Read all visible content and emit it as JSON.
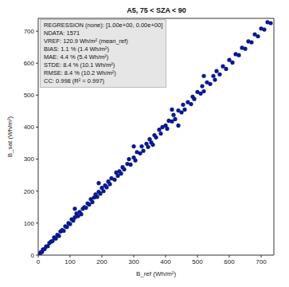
{
  "chart_data": {
    "type": "scatter",
    "title": "A5, 75 < SZA < 90",
    "x_label": "B_ref (Wh/m²)",
    "y_label": "B_sat (Wh/m²)",
    "annotations": [
      "REGRESSION (none): [1.00e+00, 0.00e+00]",
      "NDATA: 1571",
      "VREF: 120.9 Wh/m² (mean_ref)",
      "BIAS: 1.1 % (1.4 Wh/m²)",
      "MAE: 4.4 % (5.4 Wh/m²)",
      "STDE: 8.4 % (10.1 Wh/m²)",
      "RMSE: 8.4 % (10.2 Wh/m²)",
      "CC: 0.998 (R² = 0.997)"
    ],
    "color": "#0a1a8c",
    "marker": "circle",
    "xlim": [
      0,
      740
    ],
    "ylim": [
      0,
      740
    ],
    "xticks": [
      0,
      100,
      200,
      300,
      400,
      500,
      600,
      700
    ],
    "yticks": [
      0,
      100,
      200,
      300,
      400,
      500,
      600,
      700
    ],
    "grid": false,
    "x": [
      2,
      5,
      8,
      12,
      15,
      20,
      25,
      30,
      35,
      40,
      45,
      50,
      55,
      60,
      65,
      70,
      75,
      80,
      85,
      90,
      95,
      100,
      105,
      110,
      115,
      120,
      125,
      130,
      135,
      140,
      145,
      150,
      155,
      160,
      165,
      170,
      175,
      180,
      185,
      190,
      195,
      200,
      205,
      210,
      215,
      220,
      225,
      230,
      240,
      245,
      250,
      255,
      260,
      265,
      270,
      280,
      285,
      290,
      300,
      305,
      310,
      320,
      325,
      330,
      340,
      345,
      350,
      355,
      360,
      365,
      370,
      380,
      385,
      390,
      400,
      405,
      410,
      420,
      425,
      430,
      440,
      450,
      455,
      460,
      470,
      480,
      485,
      490,
      500,
      510,
      515,
      520,
      530,
      540,
      550,
      555,
      560,
      570,
      580,
      590,
      600,
      610,
      620,
      630,
      640,
      650,
      660,
      670,
      680,
      690,
      700,
      710,
      720,
      730,
      115,
      190,
      300,
      420,
      440,
      520
    ],
    "values": [
      3,
      4,
      9,
      10,
      18,
      19,
      27,
      28,
      38,
      42,
      44,
      55,
      52,
      63,
      60,
      74,
      78,
      76,
      90,
      88,
      100,
      97,
      112,
      108,
      118,
      130,
      122,
      135,
      128,
      145,
      150,
      148,
      162,
      158,
      175,
      166,
      180,
      190,
      182,
      198,
      192,
      210,
      200,
      218,
      212,
      230,
      222,
      240,
      236,
      258,
      248,
      262,
      255,
      275,
      268,
      285,
      300,
      283,
      305,
      296,
      322,
      318,
      340,
      326,
      348,
      338,
      362,
      352,
      345,
      375,
      368,
      392,
      380,
      400,
      405,
      395,
      420,
      418,
      438,
      425,
      452,
      446,
      470,
      455,
      478,
      472,
      495,
      488,
      510,
      505,
      528,
      512,
      540,
      535,
      560,
      548,
      575,
      565,
      590,
      582,
      610,
      602,
      628,
      625,
      648,
      645,
      668,
      665,
      690,
      684,
      708,
      705,
      728,
      725,
      145,
      225,
      340,
      455,
      405,
      560
    ]
  }
}
